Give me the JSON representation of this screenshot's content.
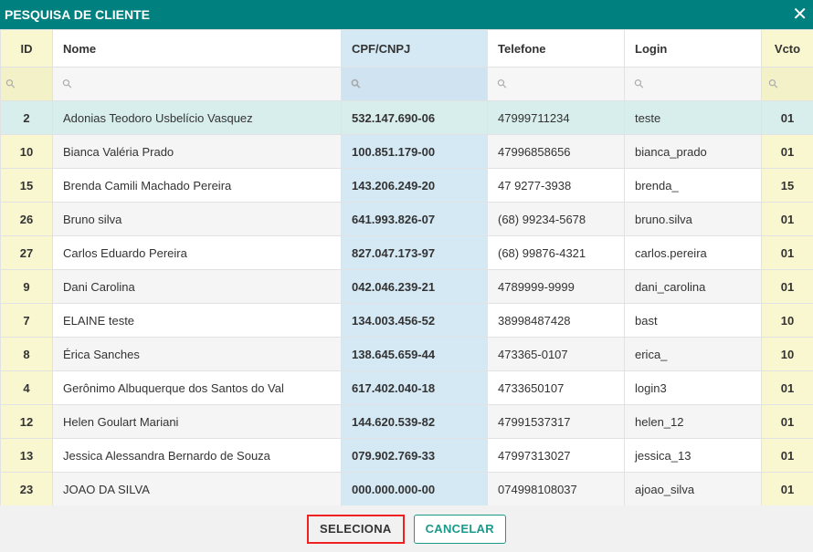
{
  "dialog": {
    "title": "PESQUISA DE CLIENTE",
    "close_icon": "close-icon"
  },
  "columns": [
    "ID",
    "Nome",
    "CPF/CNPJ",
    "Telefone",
    "Login",
    "Vcto"
  ],
  "colors": {
    "header": "#00807e",
    "id_column": "#f9f7cf",
    "cpf_column": "#d5e9f5",
    "selected_row": "#d8eeec",
    "highlight_border": "#e22222"
  },
  "rows": [
    [
      "2",
      "Adonias Teodoro Usbelício Vasquez",
      "532.147.690-06",
      "47999711234",
      "teste",
      "01"
    ],
    [
      "10",
      "Bianca Valéria Prado",
      "100.851.179-00",
      "47996858656",
      "bianca_prado",
      "01"
    ],
    [
      "15",
      "Brenda Camili Machado Pereira",
      "143.206.249-20",
      "47 9277-3938",
      "brenda_",
      "15"
    ],
    [
      "26",
      "Bruno silva",
      "641.993.826-07",
      "(68) 99234-5678",
      "bruno.silva",
      "01"
    ],
    [
      "27",
      "Carlos Eduardo Pereira",
      "827.047.173-97",
      "(68) 99876-4321",
      "carlos.pereira",
      "01"
    ],
    [
      "9",
      "Dani Carolina",
      "042.046.239-21",
      "4789999-9999",
      "dani_carolina",
      "01"
    ],
    [
      "7",
      "ELAINE teste",
      "134.003.456-52",
      "38998487428",
      "bast",
      "10"
    ],
    [
      "8",
      "Érica Sanches",
      "138.645.659-44",
      "473365-0107",
      "erica_",
      "10"
    ],
    [
      "4",
      "Gerônimo Albuquerque dos Santos do Val",
      "617.402.040-18",
      "4733650107",
      "login3",
      "01"
    ],
    [
      "12",
      "Helen Goulart Mariani",
      "144.620.539-82",
      "47991537317",
      "helen_12",
      "01"
    ],
    [
      "13",
      "Jessica Alessandra Bernardo de Souza",
      "079.902.769-33",
      "47997313027",
      "jessica_13",
      "01"
    ],
    [
      "23",
      "JOAO DA SILVA",
      "000.000.000-00",
      "074998108037",
      "ajoao_silva",
      "01"
    ]
  ],
  "selected_index": 0,
  "footer": {
    "select_label": "SELECIONA",
    "cancel_label": "CANCELAR"
  }
}
